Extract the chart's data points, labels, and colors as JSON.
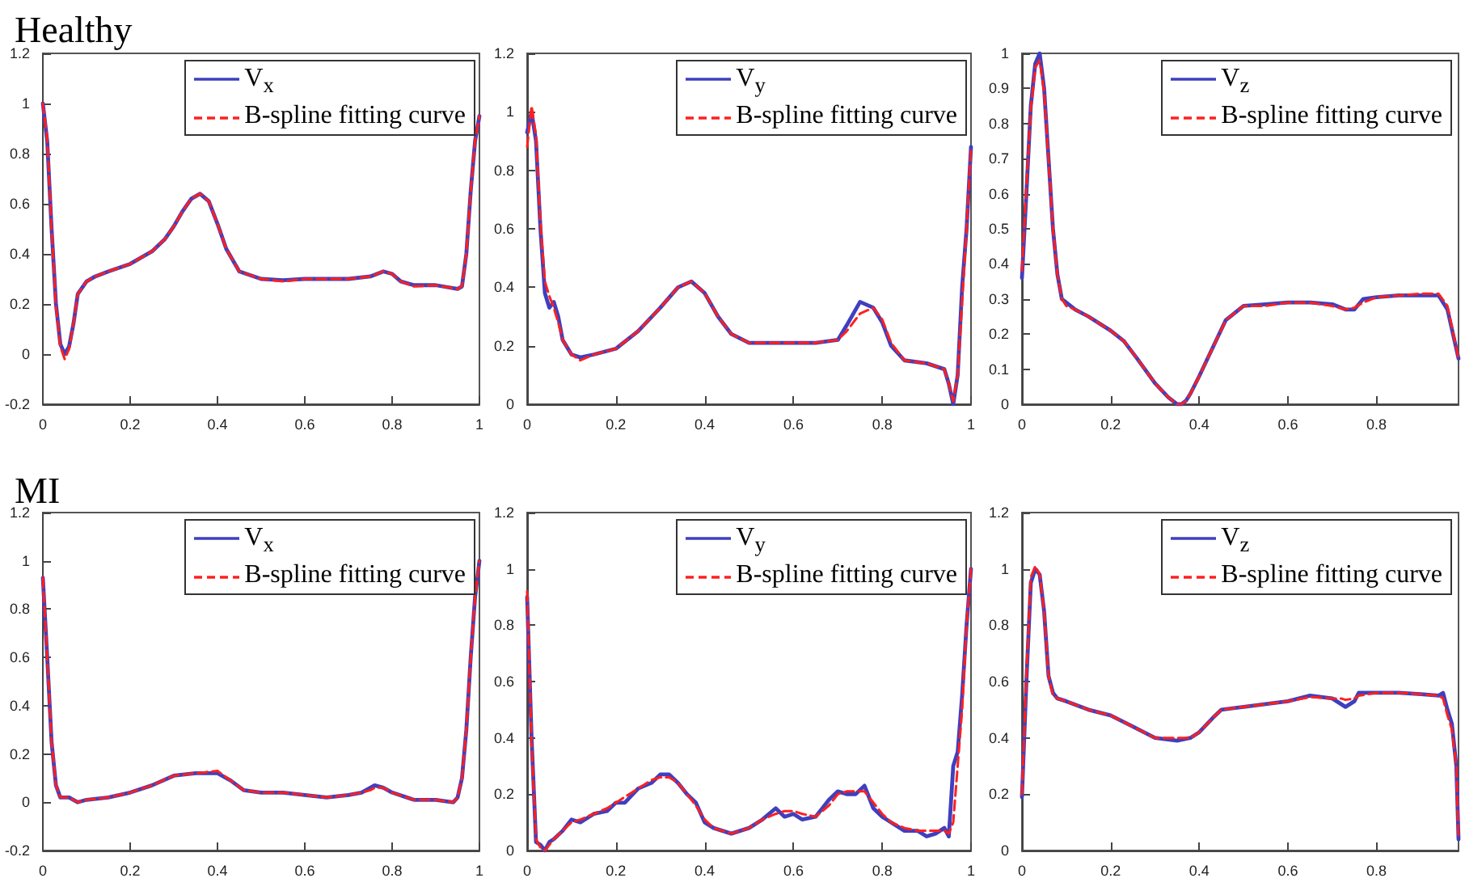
{
  "chart_data": [
    {
      "type": "line",
      "title": "Healthy",
      "x": [
        0,
        0.01,
        0.02,
        0.03,
        0.04,
        0.05,
        0.06,
        0.07,
        0.08,
        0.1,
        0.12,
        0.15,
        0.2,
        0.25,
        0.28,
        0.3,
        0.32,
        0.34,
        0.36,
        0.38,
        0.4,
        0.42,
        0.45,
        0.5,
        0.55,
        0.6,
        0.65,
        0.7,
        0.75,
        0.78,
        0.8,
        0.82,
        0.85,
        0.9,
        0.95,
        0.96,
        0.97,
        0.98,
        0.99,
        1.0
      ],
      "xlim": [
        0,
        1
      ],
      "xticks": [
        0,
        0.2,
        0.4,
        0.6,
        0.8,
        1
      ],
      "ylim": [
        -0.2,
        1.2
      ],
      "yticks": [
        -0.2,
        0,
        0.2,
        0.4,
        0.6,
        0.8,
        1,
        1.2
      ],
      "legend": "top right",
      "marker": "none",
      "series": [
        {
          "name": "V$_{x}$",
          "color": "#3f3fbf",
          "line_style": "solid",
          "values": [
            1.0,
            0.85,
            0.5,
            0.2,
            0.04,
            0.0,
            0.03,
            0.12,
            0.24,
            0.29,
            0.31,
            0.33,
            0.36,
            0.41,
            0.46,
            0.51,
            0.57,
            0.62,
            0.64,
            0.61,
            0.52,
            0.42,
            0.33,
            0.3,
            0.295,
            0.3,
            0.3,
            0.3,
            0.31,
            0.33,
            0.32,
            0.29,
            0.275,
            0.275,
            0.26,
            0.27,
            0.4,
            0.65,
            0.85,
            0.95
          ]
        },
        {
          "name": "B-spline fitting curve",
          "color": "#ff2020",
          "line_style": "dashed",
          "values": [
            1.0,
            0.86,
            0.5,
            0.19,
            0.03,
            -0.02,
            0.02,
            0.12,
            0.24,
            0.29,
            0.31,
            0.33,
            0.36,
            0.41,
            0.46,
            0.51,
            0.57,
            0.62,
            0.64,
            0.61,
            0.52,
            0.42,
            0.33,
            0.3,
            0.29,
            0.3,
            0.3,
            0.3,
            0.31,
            0.33,
            0.32,
            0.29,
            0.27,
            0.275,
            0.26,
            0.27,
            0.4,
            0.65,
            0.85,
            0.95
          ]
        }
      ]
    },
    {
      "type": "line",
      "x": [
        0,
        0.01,
        0.02,
        0.03,
        0.04,
        0.05,
        0.06,
        0.07,
        0.08,
        0.1,
        0.12,
        0.15,
        0.2,
        0.25,
        0.3,
        0.34,
        0.37,
        0.4,
        0.43,
        0.46,
        0.5,
        0.55,
        0.6,
        0.65,
        0.7,
        0.72,
        0.75,
        0.78,
        0.8,
        0.82,
        0.85,
        0.9,
        0.94,
        0.95,
        0.96,
        0.97,
        0.98,
        0.99,
        1.0
      ],
      "xlim": [
        0,
        1
      ],
      "xticks": [
        0,
        0.2,
        0.4,
        0.6,
        0.8,
        1
      ],
      "ylim": [
        0,
        1.2
      ],
      "yticks": [
        0,
        0.2,
        0.4,
        0.6,
        0.8,
        1,
        1.2
      ],
      "legend": "top right",
      "marker": "none",
      "series": [
        {
          "name": "V$_{y}$",
          "color": "#3f3fbf",
          "line_style": "solid",
          "values": [
            0.93,
            1.0,
            0.9,
            0.6,
            0.38,
            0.33,
            0.35,
            0.3,
            0.22,
            0.17,
            0.16,
            0.17,
            0.19,
            0.25,
            0.33,
            0.4,
            0.42,
            0.38,
            0.3,
            0.24,
            0.21,
            0.21,
            0.21,
            0.21,
            0.22,
            0.27,
            0.35,
            0.33,
            0.28,
            0.2,
            0.15,
            0.14,
            0.12,
            0.07,
            0.0,
            0.1,
            0.4,
            0.6,
            0.88
          ]
        },
        {
          "name": "B-spline fitting curve",
          "color": "#ff2020",
          "line_style": "dashed",
          "values": [
            0.88,
            1.02,
            0.92,
            0.62,
            0.42,
            0.37,
            0.33,
            0.28,
            0.22,
            0.17,
            0.15,
            0.17,
            0.19,
            0.25,
            0.33,
            0.4,
            0.42,
            0.38,
            0.3,
            0.24,
            0.21,
            0.21,
            0.21,
            0.21,
            0.22,
            0.25,
            0.31,
            0.33,
            0.29,
            0.21,
            0.15,
            0.14,
            0.12,
            0.07,
            0.01,
            0.1,
            0.35,
            0.6,
            0.88
          ]
        }
      ]
    },
    {
      "type": "line",
      "x": [
        0,
        0.01,
        0.02,
        0.03,
        0.04,
        0.05,
        0.06,
        0.07,
        0.08,
        0.09,
        0.1,
        0.12,
        0.15,
        0.2,
        0.23,
        0.26,
        0.3,
        0.33,
        0.35,
        0.36,
        0.37,
        0.38,
        0.4,
        0.43,
        0.46,
        0.5,
        0.55,
        0.6,
        0.65,
        0.7,
        0.73,
        0.75,
        0.77,
        0.8,
        0.85,
        0.9,
        0.94,
        0.96,
        0.985
      ],
      "xlim": [
        0,
        0.985
      ],
      "xticks": [
        0,
        0.2,
        0.4,
        0.6,
        0.8
      ],
      "ylim": [
        0,
        1
      ],
      "yticks": [
        0,
        0.1,
        0.2,
        0.3,
        0.4,
        0.5,
        0.6,
        0.7,
        0.8,
        0.9,
        1
      ],
      "legend": "top right",
      "marker": "none",
      "series": [
        {
          "name": "V$_{z}$",
          "color": "#3f3fbf",
          "line_style": "solid",
          "values": [
            0.36,
            0.6,
            0.85,
            0.97,
            1.0,
            0.9,
            0.7,
            0.5,
            0.37,
            0.3,
            0.29,
            0.27,
            0.25,
            0.21,
            0.18,
            0.13,
            0.06,
            0.02,
            0.0,
            0.0,
            0.01,
            0.03,
            0.08,
            0.16,
            0.24,
            0.28,
            0.285,
            0.29,
            0.29,
            0.285,
            0.27,
            0.27,
            0.3,
            0.305,
            0.31,
            0.31,
            0.31,
            0.27,
            0.13
          ]
        },
        {
          "name": "B-spline fitting curve",
          "color": "#ff2020",
          "line_style": "dashed",
          "values": [
            0.38,
            0.62,
            0.84,
            0.96,
            0.98,
            0.89,
            0.7,
            0.5,
            0.37,
            0.3,
            0.28,
            0.27,
            0.25,
            0.21,
            0.18,
            0.13,
            0.06,
            0.02,
            0.0,
            0.0,
            0.01,
            0.03,
            0.08,
            0.16,
            0.24,
            0.28,
            0.28,
            0.29,
            0.29,
            0.28,
            0.27,
            0.275,
            0.29,
            0.305,
            0.31,
            0.315,
            0.315,
            0.28,
            0.13
          ]
        }
      ]
    },
    {
      "type": "line",
      "title": "MI",
      "x": [
        0,
        0.01,
        0.02,
        0.03,
        0.04,
        0.05,
        0.06,
        0.08,
        0.1,
        0.15,
        0.2,
        0.25,
        0.3,
        0.35,
        0.4,
        0.43,
        0.46,
        0.5,
        0.55,
        0.6,
        0.65,
        0.7,
        0.73,
        0.75,
        0.76,
        0.78,
        0.8,
        0.85,
        0.9,
        0.94,
        0.95,
        0.96,
        0.97,
        0.98,
        0.99,
        1.0
      ],
      "xlim": [
        0,
        1
      ],
      "xticks": [
        0,
        0.2,
        0.4,
        0.6,
        0.8,
        1
      ],
      "ylim": [
        -0.2,
        1.2
      ],
      "yticks": [
        -0.2,
        0,
        0.2,
        0.4,
        0.6,
        0.8,
        1,
        1.2
      ],
      "legend": "top right",
      "marker": "none",
      "series": [
        {
          "name": "V$_{x}$",
          "color": "#3f3fbf",
          "line_style": "solid",
          "values": [
            0.93,
            0.6,
            0.25,
            0.07,
            0.02,
            0.02,
            0.02,
            0.0,
            0.01,
            0.02,
            0.04,
            0.07,
            0.11,
            0.12,
            0.12,
            0.09,
            0.05,
            0.04,
            0.04,
            0.03,
            0.02,
            0.03,
            0.04,
            0.06,
            0.07,
            0.06,
            0.04,
            0.01,
            0.01,
            0.0,
            0.02,
            0.1,
            0.3,
            0.6,
            0.85,
            1.0
          ]
        },
        {
          "name": "B-spline fitting curve",
          "color": "#ff2020",
          "line_style": "dashed",
          "values": [
            0.93,
            0.6,
            0.25,
            0.07,
            0.02,
            0.02,
            0.02,
            0.0,
            0.01,
            0.02,
            0.04,
            0.07,
            0.11,
            0.12,
            0.13,
            0.09,
            0.05,
            0.04,
            0.04,
            0.03,
            0.02,
            0.03,
            0.04,
            0.05,
            0.06,
            0.06,
            0.04,
            0.01,
            0.01,
            0.0,
            0.02,
            0.1,
            0.3,
            0.6,
            0.85,
            1.0
          ]
        }
      ]
    },
    {
      "type": "line",
      "x": [
        0,
        0.01,
        0.02,
        0.03,
        0.04,
        0.05,
        0.06,
        0.08,
        0.1,
        0.12,
        0.15,
        0.18,
        0.2,
        0.22,
        0.25,
        0.28,
        0.3,
        0.32,
        0.34,
        0.36,
        0.38,
        0.4,
        0.42,
        0.44,
        0.46,
        0.5,
        0.53,
        0.56,
        0.58,
        0.6,
        0.62,
        0.65,
        0.68,
        0.7,
        0.72,
        0.74,
        0.76,
        0.78,
        0.8,
        0.82,
        0.85,
        0.88,
        0.9,
        0.92,
        0.94,
        0.95,
        0.96,
        0.97,
        0.98,
        0.99,
        1.0
      ],
      "xlim": [
        0,
        1
      ],
      "xticks": [
        0,
        0.2,
        0.4,
        0.6,
        0.8,
        1
      ],
      "ylim": [
        0,
        1.2
      ],
      "yticks": [
        0,
        0.2,
        0.4,
        0.6,
        0.8,
        1,
        1.2
      ],
      "legend": "top right",
      "marker": "none",
      "series": [
        {
          "name": "V$_{y}$",
          "color": "#3f3fbf",
          "line_style": "solid",
          "values": [
            0.9,
            0.4,
            0.03,
            0.02,
            0.0,
            0.03,
            0.04,
            0.07,
            0.11,
            0.1,
            0.13,
            0.14,
            0.17,
            0.17,
            0.22,
            0.24,
            0.27,
            0.27,
            0.24,
            0.2,
            0.17,
            0.1,
            0.08,
            0.07,
            0.06,
            0.08,
            0.11,
            0.15,
            0.12,
            0.13,
            0.11,
            0.12,
            0.18,
            0.21,
            0.2,
            0.2,
            0.23,
            0.15,
            0.12,
            0.1,
            0.07,
            0.07,
            0.05,
            0.06,
            0.08,
            0.05,
            0.3,
            0.35,
            0.55,
            0.8,
            1.0
          ]
        },
        {
          "name": "B-spline fitting curve",
          "color": "#ff2020",
          "line_style": "dashed",
          "values": [
            0.92,
            0.38,
            0.04,
            0.01,
            0.0,
            0.02,
            0.04,
            0.07,
            0.1,
            0.11,
            0.13,
            0.15,
            0.17,
            0.19,
            0.22,
            0.25,
            0.26,
            0.26,
            0.24,
            0.2,
            0.16,
            0.11,
            0.08,
            0.07,
            0.06,
            0.08,
            0.11,
            0.13,
            0.14,
            0.14,
            0.13,
            0.12,
            0.16,
            0.2,
            0.21,
            0.21,
            0.21,
            0.17,
            0.13,
            0.1,
            0.08,
            0.07,
            0.07,
            0.07,
            0.07,
            0.06,
            0.1,
            0.3,
            0.5,
            0.8,
            1.0
          ]
        }
      ]
    },
    {
      "type": "line",
      "x": [
        0,
        0.01,
        0.02,
        0.03,
        0.04,
        0.05,
        0.06,
        0.07,
        0.08,
        0.1,
        0.15,
        0.2,
        0.25,
        0.3,
        0.35,
        0.38,
        0.4,
        0.43,
        0.45,
        0.5,
        0.55,
        0.6,
        0.65,
        0.7,
        0.72,
        0.73,
        0.75,
        0.76,
        0.8,
        0.85,
        0.9,
        0.94,
        0.95,
        0.96,
        0.97,
        0.98,
        0.985
      ],
      "xlim": [
        0,
        0.985
      ],
      "xticks": [
        0,
        0.2,
        0.4,
        0.6,
        0.8
      ],
      "ylim": [
        0,
        1.2
      ],
      "yticks": [
        0,
        0.2,
        0.4,
        0.6,
        0.8,
        1,
        1.2
      ],
      "legend": "top right",
      "marker": "none",
      "series": [
        {
          "name": "V$_{z}$",
          "color": "#3f3fbf",
          "line_style": "solid",
          "values": [
            0.19,
            0.6,
            0.95,
            1.0,
            0.98,
            0.85,
            0.62,
            0.56,
            0.54,
            0.53,
            0.5,
            0.48,
            0.44,
            0.4,
            0.39,
            0.4,
            0.42,
            0.47,
            0.5,
            0.51,
            0.52,
            0.53,
            0.55,
            0.54,
            0.52,
            0.51,
            0.53,
            0.56,
            0.56,
            0.56,
            0.555,
            0.55,
            0.56,
            0.5,
            0.45,
            0.3,
            0.04
          ]
        },
        {
          "name": "B-spline fitting curve",
          "color": "#ff2020",
          "line_style": "dashed",
          "values": [
            0.2,
            0.62,
            0.97,
            1.01,
            0.98,
            0.85,
            0.62,
            0.55,
            0.54,
            0.53,
            0.5,
            0.48,
            0.44,
            0.4,
            0.4,
            0.4,
            0.42,
            0.47,
            0.5,
            0.51,
            0.52,
            0.53,
            0.545,
            0.54,
            0.54,
            0.535,
            0.54,
            0.55,
            0.56,
            0.56,
            0.555,
            0.55,
            0.54,
            0.48,
            0.43,
            0.3,
            0.04
          ]
        }
      ]
    }
  ]
}
